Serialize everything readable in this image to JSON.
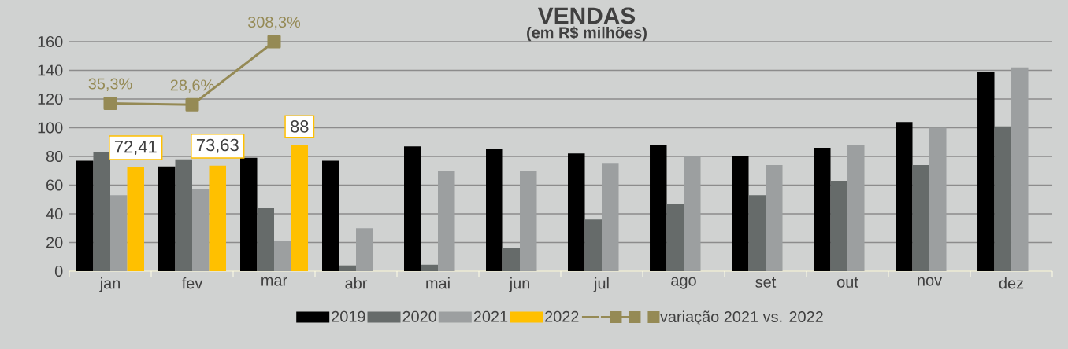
{
  "chart_data": {
    "type": "bar",
    "title": "VENDAS",
    "subtitle": "(em R$ milhões)",
    "categories": [
      "jan",
      "fev",
      "mar",
      "abr",
      "mai",
      "jun",
      "jul",
      "ago",
      "set",
      "out",
      "nov",
      "dez"
    ],
    "series": [
      {
        "name": "2019",
        "color": "#000000",
        "values": [
          77,
          73,
          79,
          77,
          87,
          85,
          82,
          88,
          80,
          86,
          104,
          139
        ]
      },
      {
        "name": "2020",
        "color": "#666b6a",
        "values": [
          83,
          78,
          44,
          4,
          4.5,
          16,
          36,
          47,
          53,
          63,
          74,
          101
        ]
      },
      {
        "name": "2021",
        "color": "#9c9fa0",
        "values": [
          53,
          57,
          21,
          30,
          70,
          70,
          75,
          80,
          74,
          88,
          100,
          142
        ]
      },
      {
        "name": "2022",
        "color": "#ffc000",
        "values": [
          72.41,
          73.63,
          88,
          null,
          null,
          null,
          null,
          null,
          null,
          null,
          null,
          null
        ],
        "value_labels": [
          "72,41",
          "73,63",
          "88",
          null,
          null,
          null,
          null,
          null,
          null,
          null,
          null,
          null
        ]
      },
      {
        "name": "variação 2021 vs. 2022",
        "type": "line",
        "axis": "y2",
        "color": "#958a55",
        "values": [
          35.3,
          28.6,
          308.3,
          null,
          null,
          null,
          null,
          null,
          null,
          null,
          null,
          null
        ],
        "value_labels": [
          "35,3%",
          "28,6%",
          "308,3%",
          null,
          null,
          null,
          null,
          null,
          null,
          null,
          null,
          null
        ]
      }
    ],
    "ylim": [
      0,
      160
    ],
    "yticks": [
      0,
      20,
      40,
      60,
      80,
      100,
      120,
      140,
      160
    ],
    "y2lim": [
      -708,
      308.3
    ],
    "grid": "y",
    "legend": "bottom",
    "marker": "square",
    "line_style": "solid"
  }
}
